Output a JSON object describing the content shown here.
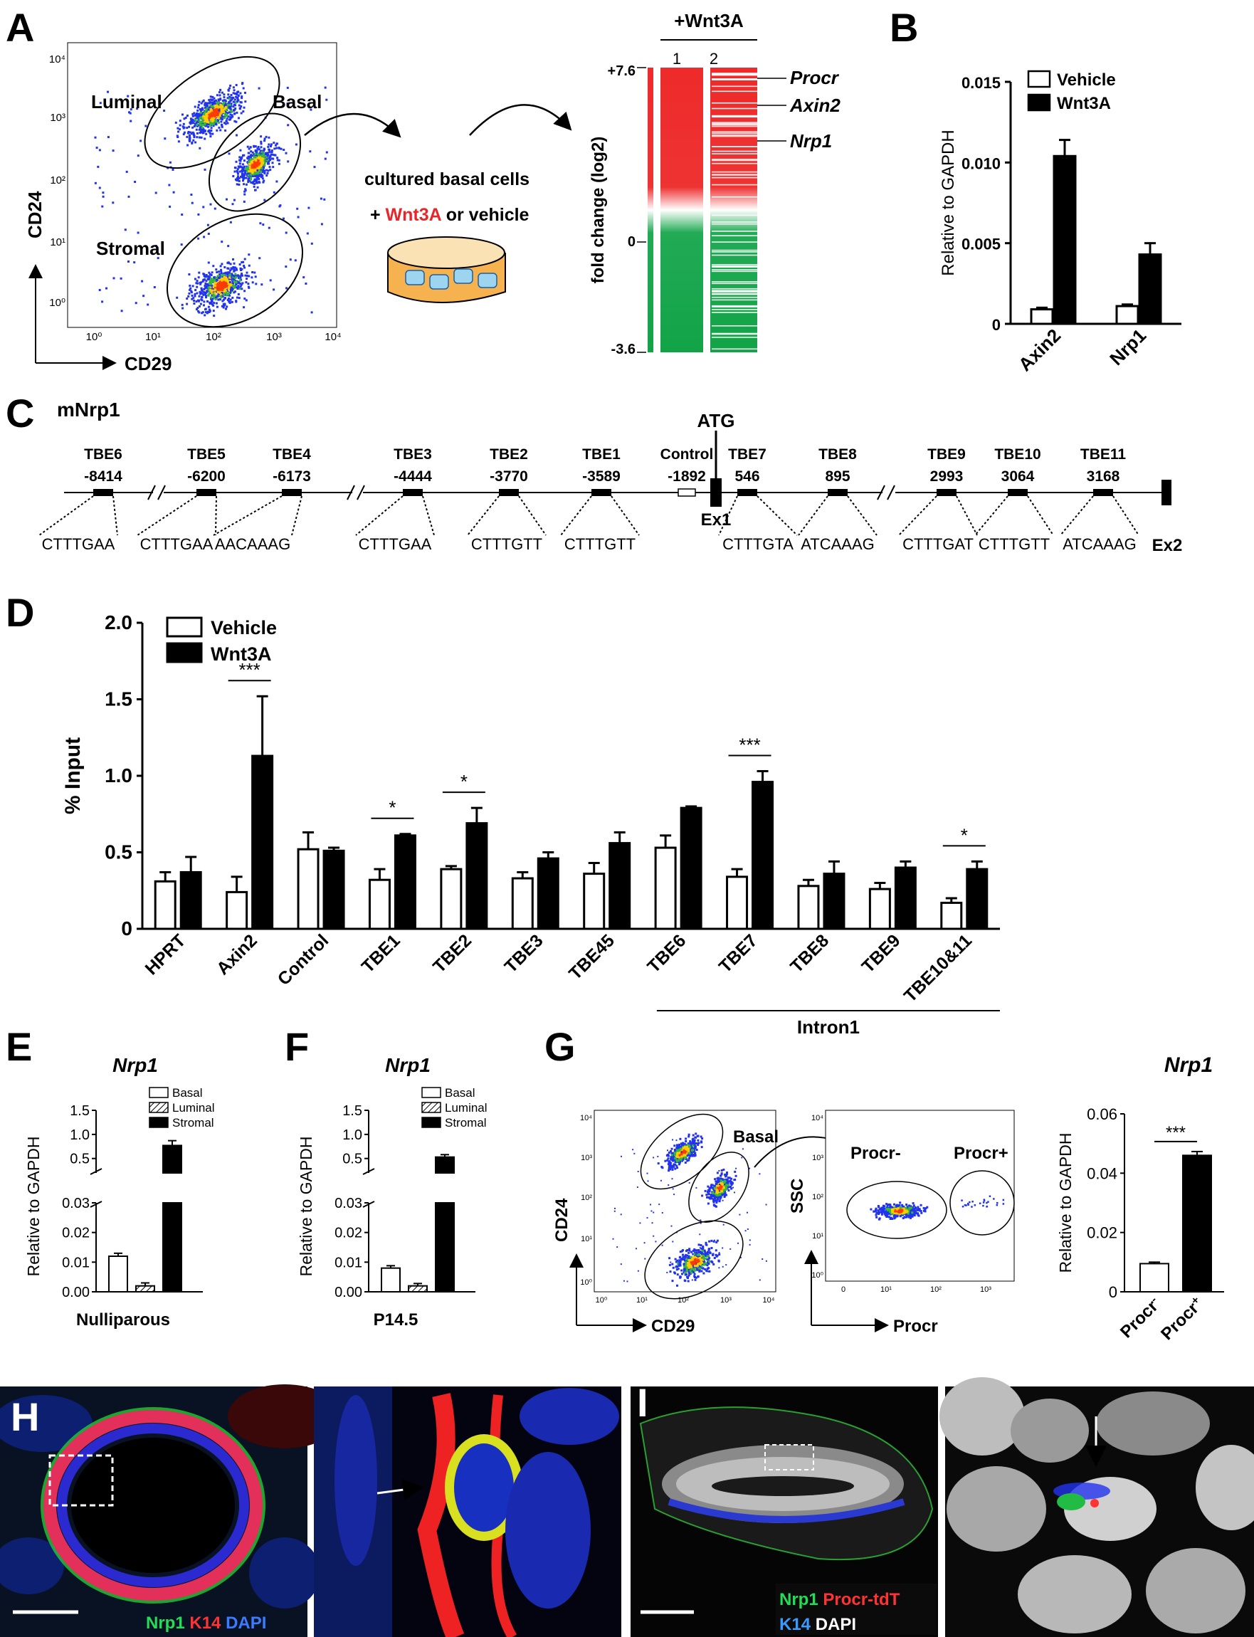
{
  "panel_labels": {
    "A": "A",
    "B": "B",
    "C": "C",
    "D": "D",
    "E": "E",
    "F": "F",
    "G": "G",
    "H": "H",
    "I": "I"
  },
  "panel_a": {
    "flow": {
      "y_axis_label": "CD24",
      "x_axis_label": "CD29",
      "y_ticks": [
        "10⁴",
        "10³",
        "10²",
        "10¹",
        "10⁰"
      ],
      "x_ticks": [
        "10⁰",
        "10¹",
        "10²",
        "10³",
        "10⁴"
      ],
      "gates": {
        "luminal": "Luminal",
        "basal": "Basal",
        "stromal": "Stromal"
      }
    },
    "culture_text_line1": "cultured basal cells",
    "culture_text_prefix": "+ ",
    "culture_text_wnt": "Wnt3A",
    "culture_text_suffix": " or vehicle",
    "heatmap": {
      "treatment_label": "+Wnt3A",
      "col1": "1",
      "col2": "2",
      "scale_top": "+7.6",
      "scale_mid": "0",
      "scale_bottom": "-3.6",
      "axis_label": "fold change (log2)",
      "genes": [
        "Procr",
        "Axin2",
        "Nrp1"
      ]
    }
  },
  "chart_b": {
    "type": "bar",
    "ylabel": "Relative to GAPDH",
    "ylim": [
      0,
      0.015
    ],
    "yticks": [
      "0.015",
      "0.010",
      "0.005",
      "0"
    ],
    "categories": [
      "Axin2",
      "Nrp1"
    ],
    "legend": [
      "Vehicle",
      "Wnt3A"
    ],
    "series": [
      {
        "name": "Vehicle",
        "values": [
          0.0009,
          0.0011
        ],
        "errors": [
          0.0001,
          0.0001
        ]
      },
      {
        "name": "Wnt3A",
        "values": [
          0.0104,
          0.0043
        ],
        "errors": [
          0.001,
          0.0007
        ]
      }
    ]
  },
  "panel_c": {
    "title": "mNrp1",
    "atg": "ATG",
    "ex1": "Ex1",
    "ex2": "Ex2",
    "elements": [
      {
        "name": "TBE6",
        "pos": "-8414"
      },
      {
        "name": "TBE5",
        "pos": "-6200"
      },
      {
        "name": "TBE4",
        "pos": "-6173"
      },
      {
        "name": "TBE3",
        "pos": "-4444"
      },
      {
        "name": "TBE2",
        "pos": "-3770"
      },
      {
        "name": "TBE1",
        "pos": "-3589"
      },
      {
        "name": "Control",
        "pos": "-1892"
      },
      {
        "name": "TBE7",
        "pos": "546"
      },
      {
        "name": "TBE8",
        "pos": "895"
      },
      {
        "name": "TBE9",
        "pos": "2993"
      },
      {
        "name": "TBE10",
        "pos": "3064"
      },
      {
        "name": "TBE11",
        "pos": "3168"
      }
    ],
    "sequences": [
      "CTTTGAA",
      "CTTTGAA",
      "AACAAAG",
      "CTTTGAA",
      "CTTTGTT",
      "CTTTGTT",
      "CTTTGTA",
      "ATCAAAG",
      "CTTTGAT",
      "CTTTGTT",
      "ATCAAAG"
    ]
  },
  "chart_d": {
    "type": "bar",
    "ylabel": "% Input",
    "ylim": [
      0,
      2.0
    ],
    "yticks": [
      "2.0",
      "1.5",
      "1.0",
      "0.5",
      "0"
    ],
    "categories": [
      "HPRT",
      "Axin2",
      "Control",
      "TBE1",
      "TBE2",
      "TBE3",
      "TBE45",
      "TBE6",
      "TBE7",
      "TBE8",
      "TBE9",
      "TBE10&11"
    ],
    "legend": [
      "Vehicle",
      "Wnt3A"
    ],
    "series": [
      {
        "name": "Vehicle",
        "values": [
          0.31,
          0.24,
          0.52,
          0.32,
          0.39,
          0.33,
          0.36,
          0.53,
          0.34,
          0.28,
          0.26,
          0.17
        ],
        "errors": [
          0.06,
          0.1,
          0.11,
          0.07,
          0.02,
          0.04,
          0.07,
          0.08,
          0.05,
          0.04,
          0.04,
          0.03
        ]
      },
      {
        "name": "Wnt3A",
        "values": [
          0.37,
          1.13,
          0.51,
          0.61,
          0.69,
          0.46,
          0.56,
          0.79,
          0.96,
          0.36,
          0.4,
          0.39
        ],
        "errors": [
          0.1,
          0.39,
          0.02,
          0.01,
          0.1,
          0.04,
          0.07,
          0.01,
          0.07,
          0.08,
          0.04,
          0.05
        ]
      }
    ],
    "significance": [
      {
        "category": "Axin2",
        "label": "***"
      },
      {
        "category": "TBE1",
        "label": "*"
      },
      {
        "category": "TBE2",
        "label": "*"
      },
      {
        "category": "TBE7",
        "label": "***"
      },
      {
        "category": "TBE10&11",
        "label": "*"
      }
    ],
    "bracket_label": "Intron1"
  },
  "chart_e": {
    "type": "bar",
    "title": "Nrp1",
    "xlabel": "Nulliparous",
    "ylabel": "Relative to GAPDH",
    "upper_ticks": [
      "1.5",
      "1.0",
      "0.5"
    ],
    "lower_ticks": [
      "0.03",
      "0.02",
      "0.01",
      "0.00"
    ],
    "legend": [
      "Basal",
      "Luminal",
      "Stromal"
    ],
    "values": [
      0.012,
      0.002,
      0.77
    ],
    "errors": [
      0.001,
      0.001,
      0.1
    ]
  },
  "chart_f": {
    "type": "bar",
    "title": "Nrp1",
    "xlabel": "P14.5",
    "ylabel": "Relative to GAPDH",
    "upper_ticks": [
      "1.5",
      "1.0",
      "0.5"
    ],
    "lower_ticks": [
      "0.03",
      "0.02",
      "0.01",
      "0.00"
    ],
    "legend": [
      "Basal",
      "Luminal",
      "Stromal"
    ],
    "values": [
      0.008,
      0.002,
      0.53
    ],
    "errors": [
      0.0008,
      0.0008,
      0.05
    ]
  },
  "panel_g": {
    "flow1": {
      "y_axis_label": "CD24",
      "x_axis_label": "CD29",
      "gate": "Basal",
      "y_ticks": [
        "10⁴",
        "10³",
        "10²",
        "10¹",
        "10⁰"
      ],
      "x_ticks": [
        "10⁰",
        "10¹",
        "10²",
        "10³",
        "10⁴"
      ]
    },
    "flow2": {
      "y_axis_label": "SSC",
      "x_axis_label": "Procr",
      "gate_neg": "Procr-",
      "gate_pos": "Procr+",
      "y_ticks": [
        "10⁴",
        "10³",
        "10²",
        "10¹",
        "10⁰"
      ],
      "x_ticks": [
        "0",
        "10¹",
        "10²",
        "10³"
      ]
    }
  },
  "chart_g": {
    "type": "bar",
    "title": "Nrp1",
    "ylabel": "Relative to GAPDH",
    "ylim": [
      0,
      0.06
    ],
    "yticks": [
      "0.06",
      "0.04",
      "0.02",
      "0"
    ],
    "categories": [
      "Procr",
      "Procr"
    ],
    "cat_superscripts": [
      "-",
      "+"
    ],
    "values": [
      0.0095,
      0.046
    ],
    "errors": [
      0.0005,
      0.0013
    ],
    "significance": "***"
  },
  "panel_h": {
    "stain_nrp1": "Nrp1",
    "stain_k14": "K14",
    "stain_dapi": "DAPI"
  },
  "panel_i": {
    "stain_nrp1": "Nrp1",
    "stain_procr": "Procr-tdT",
    "stain_k14": "K14",
    "stain_dapi": "DAPI"
  },
  "colors": {
    "red": "#e8262a",
    "green": "#14a84b",
    "blue": "#2233ee",
    "black": "#000000"
  }
}
